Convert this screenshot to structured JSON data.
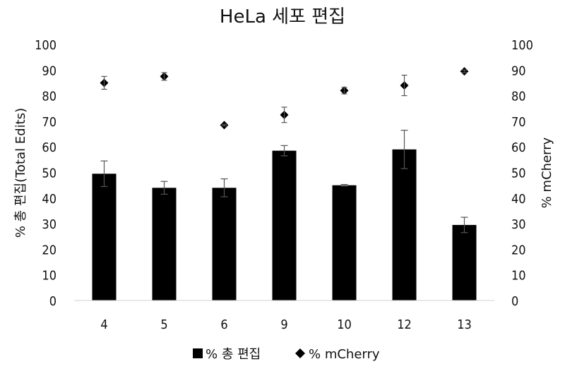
{
  "chart_data": {
    "type": "bar",
    "title": "HeLa 세포 편집",
    "categories": [
      "4",
      "5",
      "6",
      "9",
      "10",
      "12",
      "13"
    ],
    "ylabel": "% 총 편집(Total Edits)",
    "y2label": "% mCherry",
    "ylim": [
      0,
      100
    ],
    "y2lim": [
      0,
      100
    ],
    "yticks": [
      "0",
      "10",
      "20",
      "30",
      "40",
      "50",
      "60",
      "70",
      "80",
      "90",
      "100"
    ],
    "grid": false,
    "legend_position": "bottom",
    "series": [
      {
        "name": "% 총 편집",
        "type": "bar",
        "axis": "left",
        "color": "#000000",
        "values": [
          49.5,
          44,
          44,
          58.5,
          45,
          59,
          29.5
        ],
        "errors": [
          5,
          2.5,
          3.5,
          2,
          0.3,
          7.5,
          3
        ]
      },
      {
        "name": "% mCherry",
        "type": "scatter",
        "marker": "diamond",
        "axis": "right",
        "color": "#000000",
        "values": [
          85,
          87.5,
          68.5,
          72.5,
          82,
          84,
          89.5
        ],
        "errors": [
          2.5,
          1.5,
          0.3,
          3,
          1.3,
          4,
          0.5
        ]
      }
    ]
  }
}
